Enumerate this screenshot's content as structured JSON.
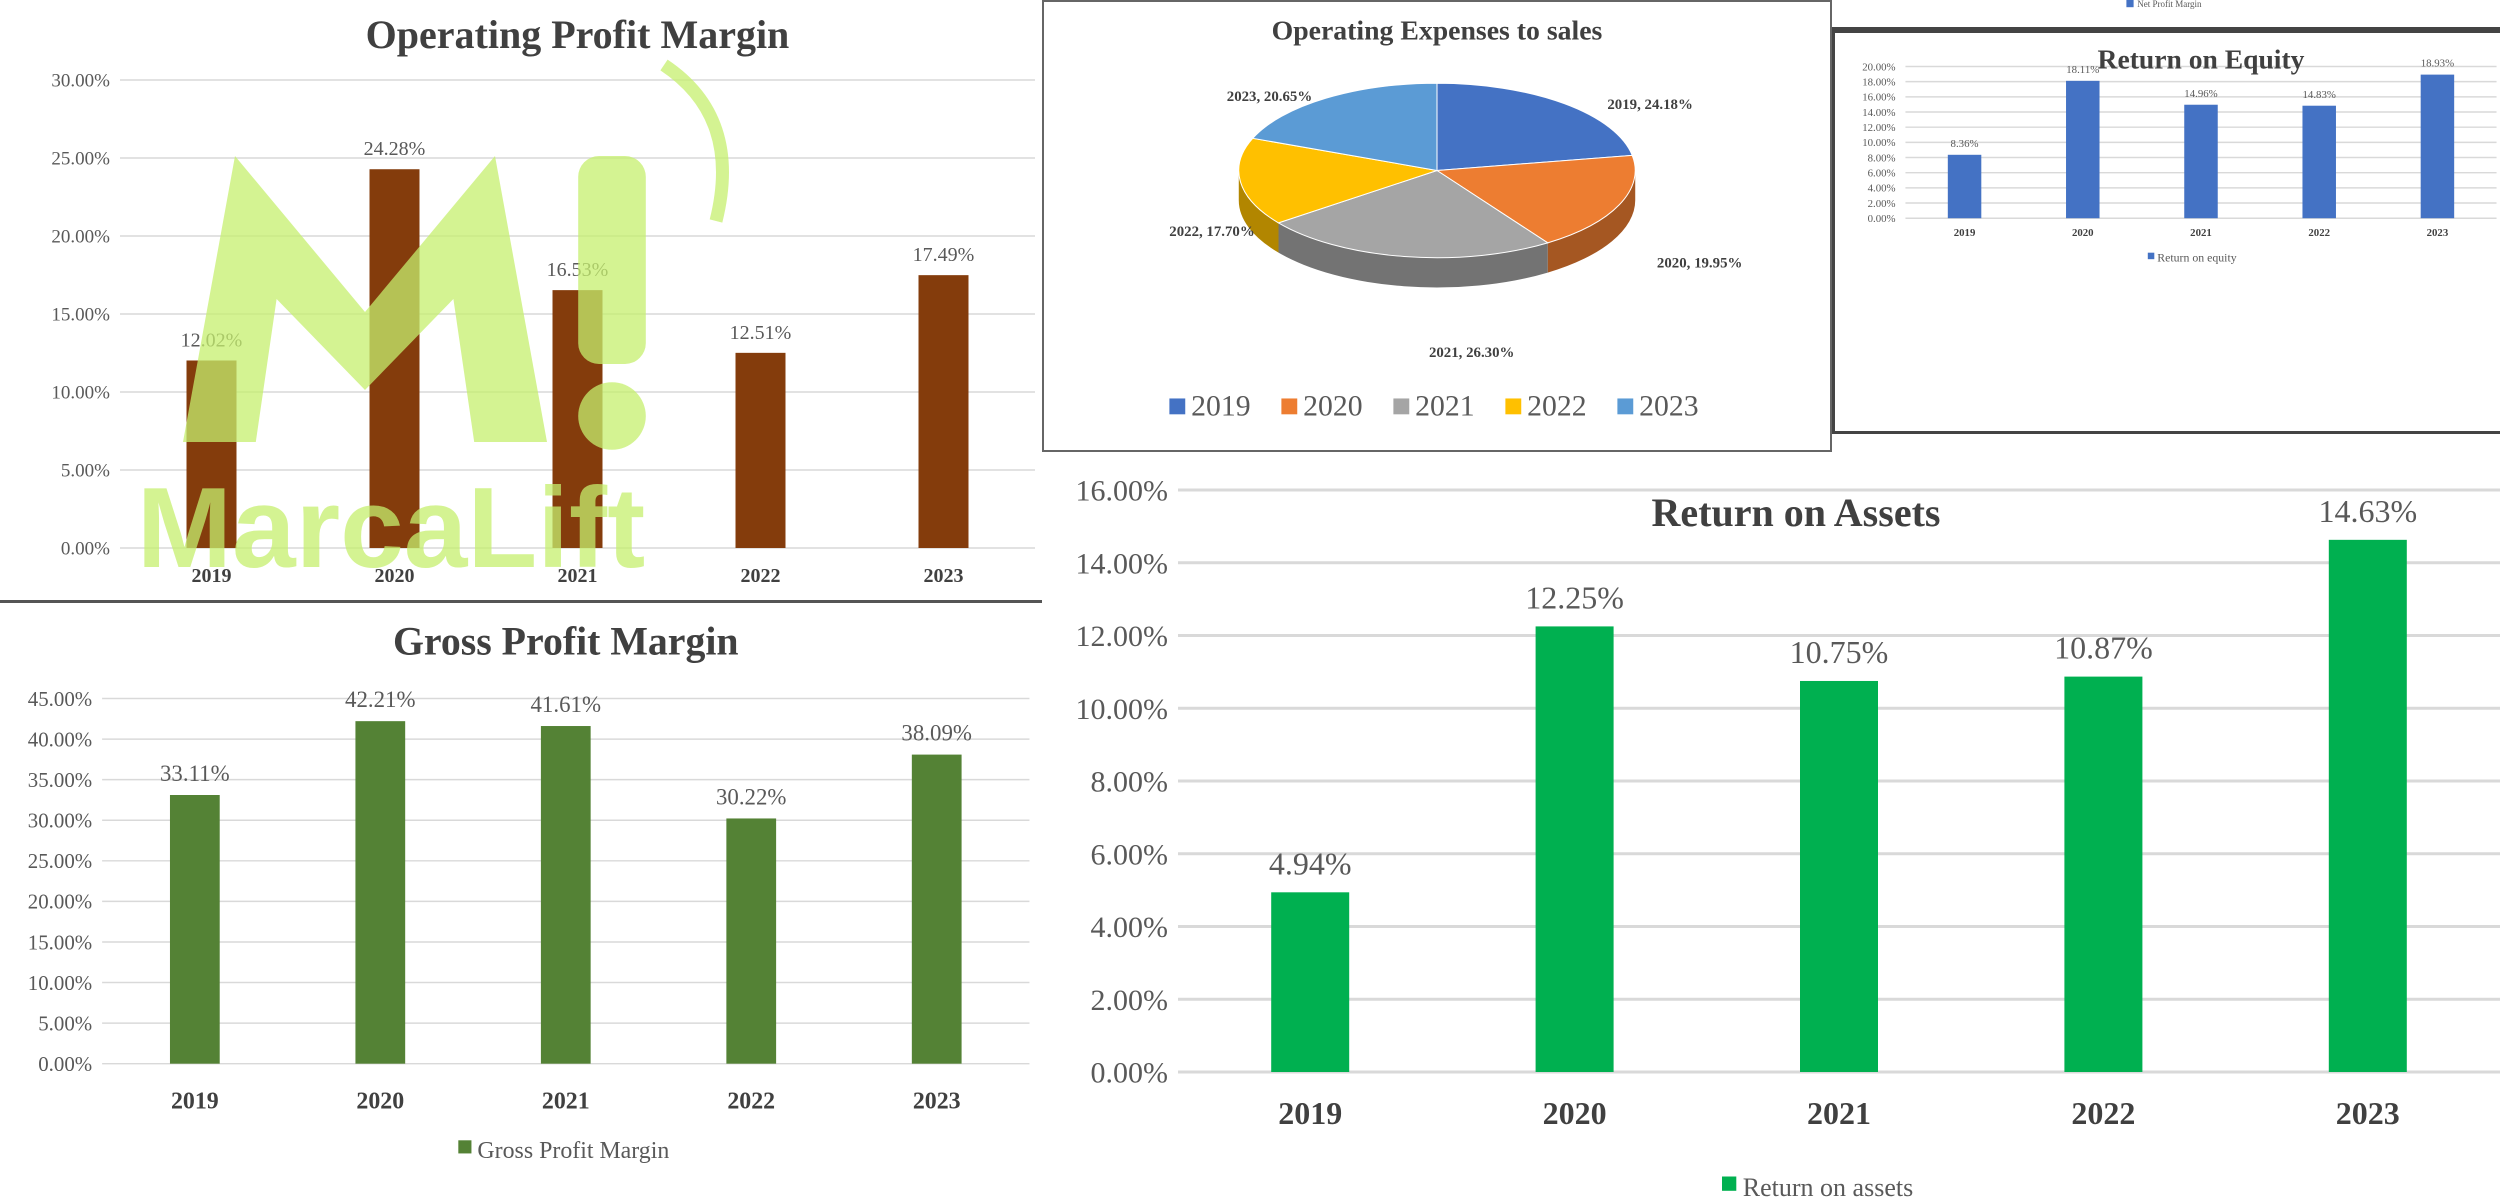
{
  "watermark": {
    "text": "MarcaLift",
    "mark": "M!"
  },
  "colors": {
    "opm_bar": "#843c0c",
    "gpm_bar": "#548235",
    "roe_bar": "#4472c4",
    "roa_bar": "#00b050",
    "grid": "#d9d9d9",
    "axis_text": "#595959",
    "title_text": "#404040",
    "watermark": "#c6ef6e"
  },
  "chart_data": [
    {
      "id": "opm",
      "type": "bar",
      "title": "Operating Profit Margin",
      "categories": [
        "2019",
        "2020",
        "2021",
        "2022",
        "2023"
      ],
      "values": [
        12.02,
        24.28,
        16.53,
        12.51,
        17.49
      ],
      "data_labels": [
        "12.02%",
        "24.28%",
        "16.53%",
        "12.51%",
        "17.49%"
      ],
      "y_ticks": [
        "0.00%",
        "5.00%",
        "10.00%",
        "15.00%",
        "20.00%",
        "25.00%",
        "30.00%"
      ],
      "ylim": [
        0,
        30
      ],
      "legend": "",
      "grid": true
    },
    {
      "id": "gpm",
      "type": "bar",
      "title": "Gross Profit Margin",
      "categories": [
        "2019",
        "2020",
        "2021",
        "2022",
        "2023"
      ],
      "values": [
        33.11,
        42.21,
        41.61,
        30.22,
        38.09
      ],
      "data_labels": [
        "33.11%",
        "42.21%",
        "41.61%",
        "30.22%",
        "38.09%"
      ],
      "y_ticks": [
        "0.00%",
        "5.00%",
        "10.00%",
        "15.00%",
        "20.00%",
        "25.00%",
        "30.00%",
        "35.00%",
        "40.00%",
        "45.00%"
      ],
      "ylim": [
        0,
        45
      ],
      "legend": "Gross Profit Margin",
      "grid": true
    },
    {
      "id": "oes",
      "type": "pie",
      "title": "Operating Expenses to sales",
      "categories": [
        "2019",
        "2020",
        "2021",
        "2022",
        "2023"
      ],
      "values": [
        24.18,
        19.95,
        26.3,
        17.7,
        20.65
      ],
      "data_labels": [
        "2019, 24.18%",
        "2020, 19.95%",
        "2021, 26.30%",
        "2022, 17.70%",
        "2023, 20.65%"
      ],
      "colors": [
        "#4472c4",
        "#ed7d31",
        "#a5a5a5",
        "#ffc000",
        "#5b9bd5"
      ],
      "legend": "bottom"
    },
    {
      "id": "roe",
      "type": "bar",
      "title": "Return on Equity",
      "categories": [
        "2019",
        "2020",
        "2021",
        "2022",
        "2023"
      ],
      "values": [
        8.36,
        18.11,
        14.96,
        14.83,
        18.93
      ],
      "data_labels": [
        "8.36%",
        "18.11%",
        "14.96%",
        "14.83%",
        "18.93%"
      ],
      "y_ticks": [
        "0.00%",
        "2.00%",
        "4.00%",
        "6.00%",
        "8.00%",
        "10.00%",
        "12.00%",
        "14.00%",
        "16.00%",
        "18.00%",
        "20.00%"
      ],
      "ylim": [
        0,
        20
      ],
      "legend": "Return on equity",
      "grid": true
    },
    {
      "id": "roa",
      "type": "bar",
      "title": "Return on Assets",
      "categories": [
        "2019",
        "2020",
        "2021",
        "2022",
        "2023"
      ],
      "values": [
        4.94,
        12.25,
        10.75,
        10.87,
        14.63
      ],
      "data_labels": [
        "4.94%",
        "12.25%",
        "10.75%",
        "10.87%",
        "14.63%"
      ],
      "y_ticks": [
        "0.00%",
        "2.00%",
        "4.00%",
        "6.00%",
        "8.00%",
        "10.00%",
        "12.00%",
        "14.00%",
        "16.00%"
      ],
      "ylim": [
        0,
        16
      ],
      "legend": "Return on assets",
      "grid": true
    }
  ],
  "npm_strip": {
    "legend": "Net Profit Margin"
  }
}
